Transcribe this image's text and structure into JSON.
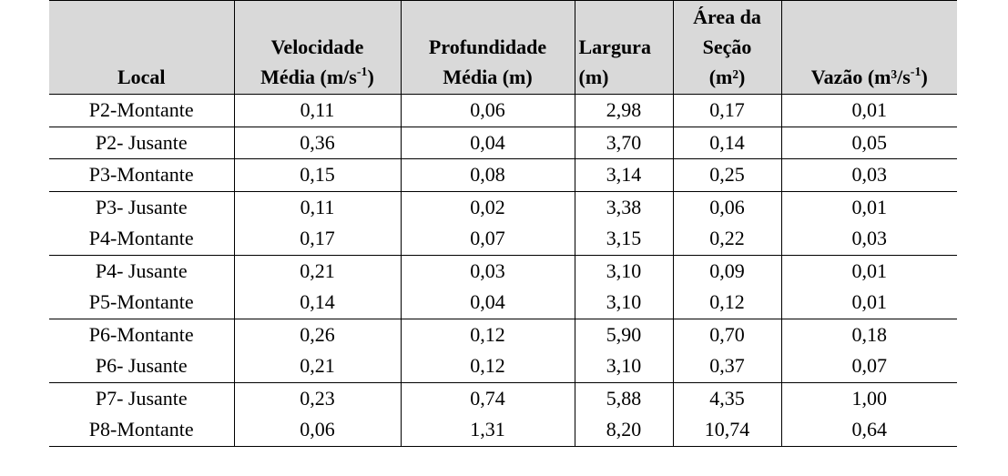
{
  "table": {
    "headers": {
      "local": "Local",
      "velocidade_l1": "Velocidade",
      "velocidade_l2": "Média (m/s",
      "velocidade_sup": "-1",
      "velocidade_close": ")",
      "profundidade_l1": "Profundidade",
      "profundidade_l2": "Média (m)",
      "largura_l1": "Largura",
      "largura_l2": "(m)",
      "area_l1": "Área da",
      "area_l2": "Seção",
      "area_l3": "(m²)",
      "vazao_l1": "Vazão (m³/s",
      "vazao_sup": "-1",
      "vazao_close": ")"
    },
    "rows": [
      [
        "P2-Montante",
        "0,11",
        "0,06",
        "2,98",
        "0,17",
        "0,01"
      ],
      [
        "P2- Jusante",
        "0,36",
        "0,04",
        "3,70",
        "0,14",
        "0,05"
      ],
      [
        "P3-Montante",
        "0,15",
        "0,08",
        "3,14",
        "0,25",
        "0,03"
      ],
      [
        "P3- Jusante",
        "0,11",
        "0,02",
        "3,38",
        "0,06",
        "0,01"
      ],
      [
        "P4-Montante",
        "0,17",
        "0,07",
        "3,15",
        "0,22",
        "0,03"
      ],
      [
        "P4- Jusante",
        "0,21",
        "0,03",
        "3,10",
        "0,09",
        "0,01"
      ],
      [
        "P5-Montante",
        "0,14",
        "0,04",
        "3,10",
        "0,12",
        "0,01"
      ],
      [
        "P6-Montante",
        "0,26",
        "0,12",
        "5,90",
        "0,70",
        "0,18"
      ],
      [
        "P6- Jusante",
        "0,21",
        "0,12",
        "3,10",
        "0,37",
        "0,07"
      ],
      [
        "P7- Jusante",
        "0,23",
        "0,74",
        "5,88",
        "4,35",
        "1,00"
      ],
      [
        "P8-Montante",
        "0,06",
        "1,31",
        "8,20",
        "10,74",
        "0,64"
      ]
    ]
  }
}
